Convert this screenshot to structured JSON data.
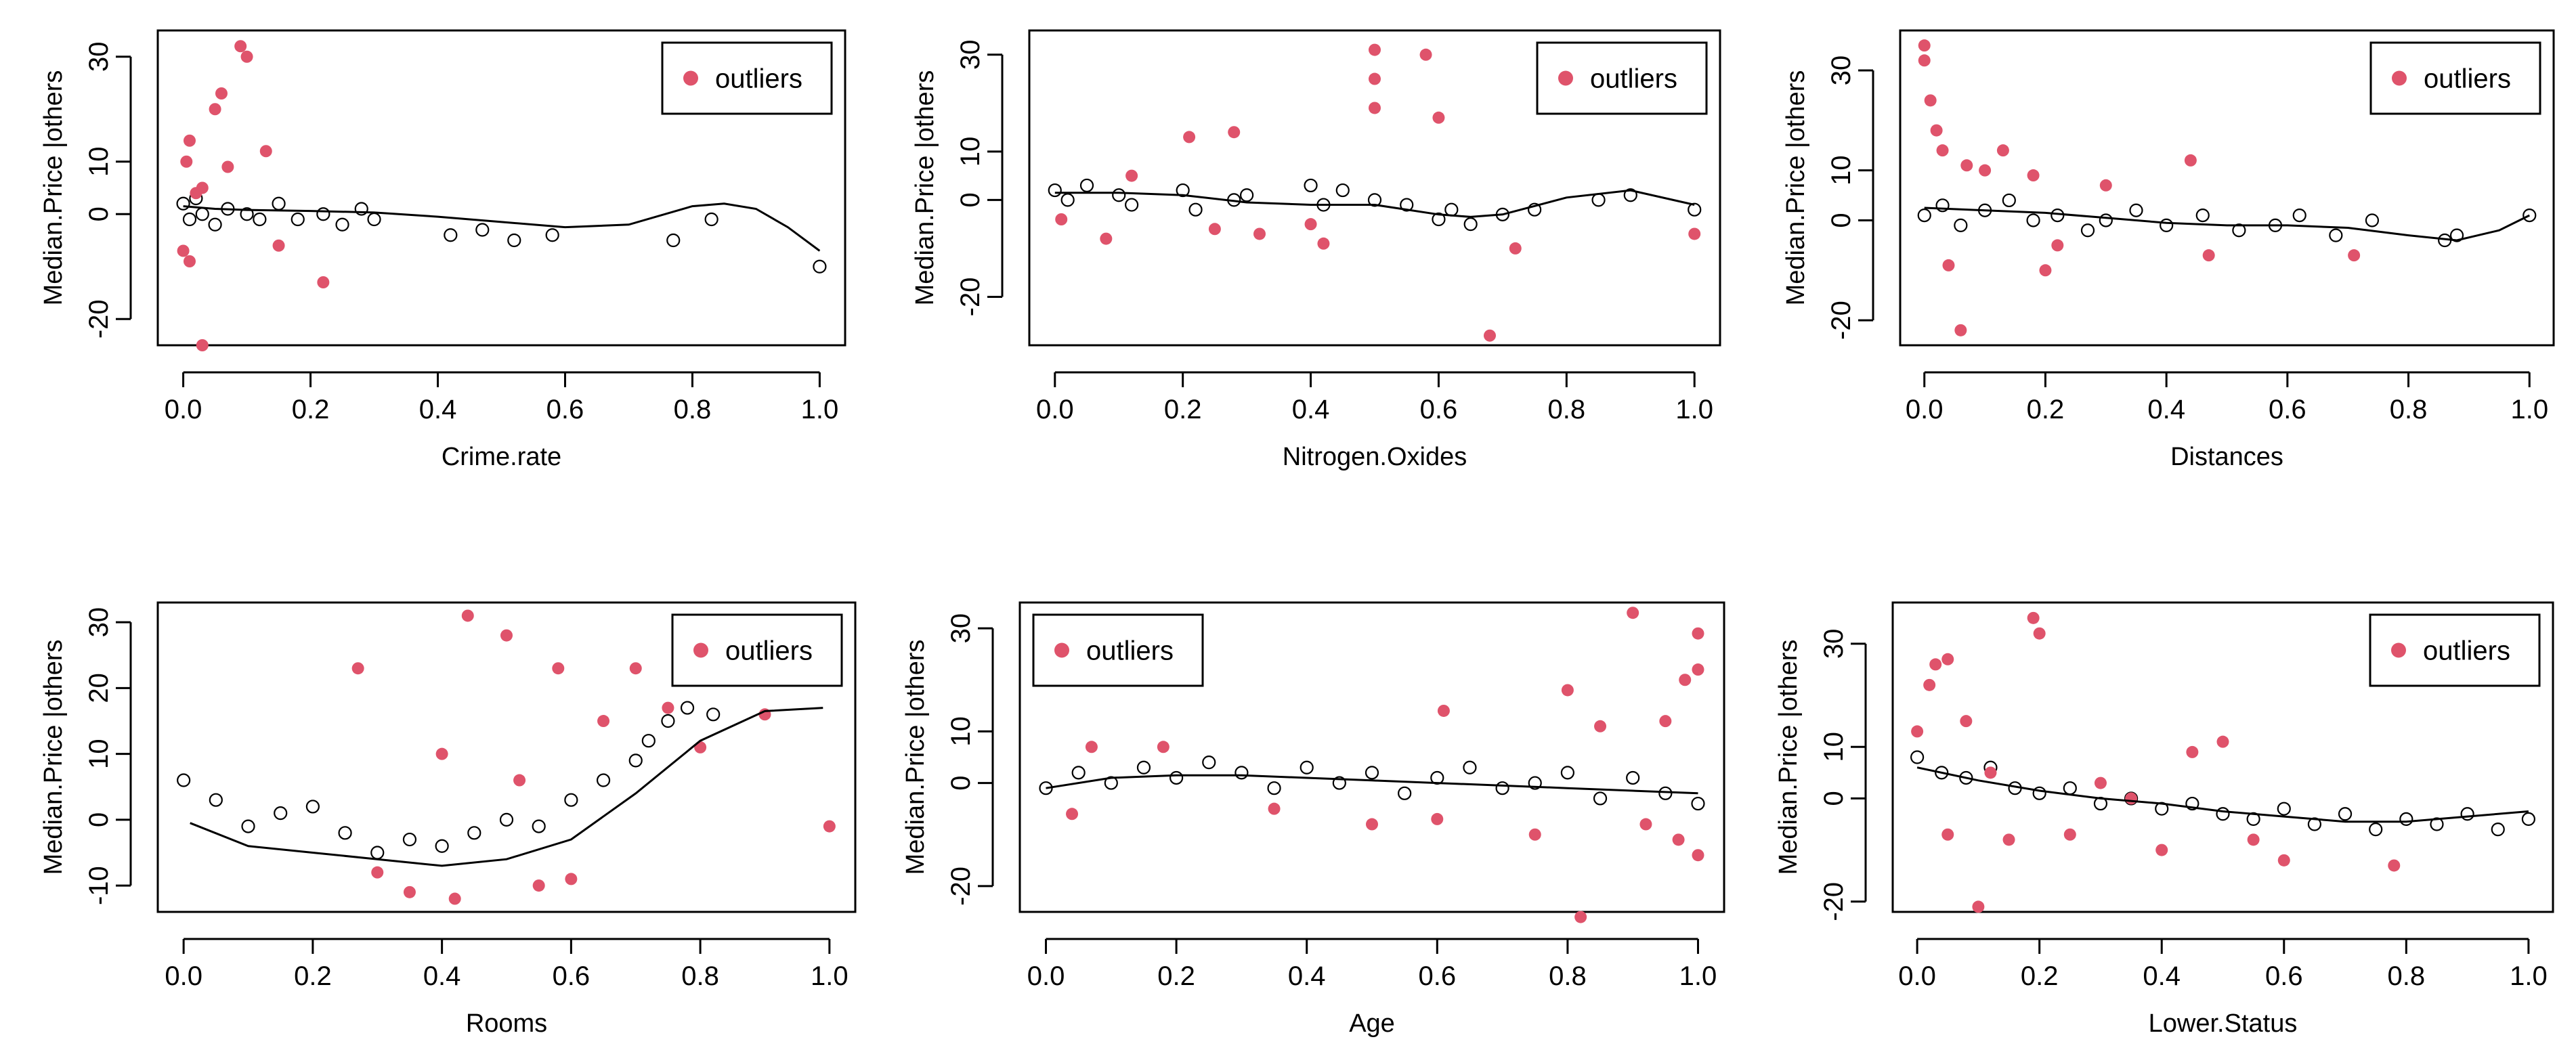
{
  "colors": {
    "outlier": "#DF536B",
    "ink": "#000000",
    "background": "#FFFFFF"
  },
  "chart_data": [
    {
      "type": "scatter",
      "xlabel": "Crime.rate",
      "ylabel": "Median.Price |others",
      "xlim": [
        -0.04,
        1.04
      ],
      "ylim": [
        -25,
        35
      ],
      "xticks": [
        0.0,
        0.2,
        0.4,
        0.6,
        0.8,
        1.0
      ],
      "xtick_labels": [
        "0.0",
        "0.2",
        "0.4",
        "0.6",
        "0.8",
        "1.0"
      ],
      "yticks": [
        -20,
        0,
        10,
        30
      ],
      "ytick_labels": [
        "-20",
        "0",
        "10",
        "30"
      ],
      "legend": {
        "label": "outliers",
        "position": "top-right"
      },
      "smooth": {
        "x": [
          0.0,
          0.05,
          0.1,
          0.2,
          0.3,
          0.4,
          0.5,
          0.6,
          0.7,
          0.8,
          0.85,
          0.9,
          0.95,
          1.0
        ],
        "y": [
          1.5,
          1.0,
          0.8,
          0.6,
          0.3,
          -0.5,
          -1.5,
          -2.5,
          -2.0,
          1.5,
          2.0,
          1.0,
          -2.5,
          -7.0
        ]
      },
      "normal_points": {
        "x": [
          0.0,
          0.01,
          0.02,
          0.03,
          0.05,
          0.07,
          0.1,
          0.12,
          0.15,
          0.18,
          0.22,
          0.25,
          0.28,
          0.3,
          0.42,
          0.47,
          0.52,
          0.58,
          0.77,
          0.83,
          1.0
        ],
        "y": [
          2,
          -1,
          3,
          0,
          -2,
          1,
          0,
          -1,
          2,
          -1,
          0,
          -2,
          1,
          -1,
          -4,
          -3,
          -5,
          -4,
          -5,
          -1,
          -10
        ]
      },
      "outlier_points": {
        "x": [
          0.005,
          0.01,
          0.01,
          0.02,
          0.03,
          0.05,
          0.06,
          0.07,
          0.09,
          0.1,
          0.13,
          0.15,
          0.22,
          0.0,
          0.03
        ],
        "y": [
          10,
          14,
          -9,
          4,
          -25,
          20,
          23,
          9,
          32,
          30,
          12,
          -6,
          -13,
          -7,
          5
        ]
      }
    },
    {
      "type": "scatter",
      "xlabel": "Nitrogen.Oxides",
      "ylabel": "Median.Price |others",
      "xlim": [
        -0.04,
        1.04
      ],
      "ylim": [
        -30,
        35
      ],
      "xticks": [
        0.0,
        0.2,
        0.4,
        0.6,
        0.8,
        1.0
      ],
      "xtick_labels": [
        "0.0",
        "0.2",
        "0.4",
        "0.6",
        "0.8",
        "1.0"
      ],
      "yticks": [
        -20,
        0,
        10,
        30
      ],
      "ytick_labels": [
        "-20",
        "0",
        "10",
        "30"
      ],
      "legend": {
        "label": "outliers",
        "position": "top-right"
      },
      "smooth": {
        "x": [
          0.0,
          0.1,
          0.2,
          0.3,
          0.4,
          0.5,
          0.6,
          0.65,
          0.7,
          0.8,
          0.9,
          1.0
        ],
        "y": [
          1.5,
          1.5,
          1.0,
          -0.5,
          -1.0,
          -1.0,
          -3.0,
          -3.5,
          -3.0,
          0.5,
          2.0,
          -1.0
        ]
      },
      "normal_points": {
        "x": [
          0.0,
          0.02,
          0.05,
          0.1,
          0.12,
          0.2,
          0.22,
          0.28,
          0.3,
          0.4,
          0.42,
          0.45,
          0.5,
          0.55,
          0.6,
          0.62,
          0.65,
          0.7,
          0.75,
          0.85,
          0.9,
          1.0
        ],
        "y": [
          2,
          0,
          3,
          1,
          -1,
          2,
          -2,
          0,
          1,
          3,
          -1,
          2,
          0,
          -1,
          -4,
          -2,
          -5,
          -3,
          -2,
          0,
          1,
          -2
        ]
      },
      "outlier_points": {
        "x": [
          0.01,
          0.08,
          0.12,
          0.21,
          0.25,
          0.28,
          0.32,
          0.4,
          0.42,
          0.5,
          0.5,
          0.5,
          0.58,
          0.6,
          0.68,
          0.72,
          1.0
        ],
        "y": [
          -4,
          -8,
          5,
          13,
          -6,
          14,
          -7,
          -5,
          -9,
          31,
          25,
          19,
          30,
          17,
          -28,
          -10,
          -7
        ]
      }
    },
    {
      "type": "scatter",
      "xlabel": "Distances",
      "ylabel": "Median.Price |others",
      "xlim": [
        -0.04,
        1.04
      ],
      "ylim": [
        -25,
        38
      ],
      "xticks": [
        0.0,
        0.2,
        0.4,
        0.6,
        0.8,
        1.0
      ],
      "xtick_labels": [
        "0.0",
        "0.2",
        "0.4",
        "0.6",
        "0.8",
        "1.0"
      ],
      "yticks": [
        -20,
        0,
        10,
        30
      ],
      "ytick_labels": [
        "-20",
        "0",
        "10",
        "30"
      ],
      "legend": {
        "label": "outliers",
        "position": "top-right"
      },
      "smooth": {
        "x": [
          0.0,
          0.1,
          0.2,
          0.3,
          0.4,
          0.5,
          0.6,
          0.7,
          0.8,
          0.88,
          0.95,
          1.0
        ],
        "y": [
          2.5,
          2.0,
          1.5,
          0.5,
          -0.5,
          -1.0,
          -1.0,
          -1.5,
          -3.0,
          -4.0,
          -2.0,
          1.0
        ]
      },
      "normal_points": {
        "x": [
          0.0,
          0.03,
          0.06,
          0.1,
          0.14,
          0.18,
          0.22,
          0.27,
          0.3,
          0.35,
          0.4,
          0.46,
          0.52,
          0.58,
          0.62,
          0.68,
          0.74,
          0.86,
          0.88,
          1.0
        ],
        "y": [
          1,
          3,
          -1,
          2,
          4,
          0,
          1,
          -2,
          0,
          2,
          -1,
          1,
          -2,
          -1,
          1,
          -3,
          0,
          -4,
          -3,
          1
        ]
      },
      "outlier_points": {
        "x": [
          0.0,
          0.0,
          0.01,
          0.02,
          0.03,
          0.04,
          0.06,
          0.07,
          0.1,
          0.13,
          0.18,
          0.2,
          0.22,
          0.3,
          0.44,
          0.47,
          0.71
        ],
        "y": [
          35,
          32,
          24,
          18,
          14,
          -9,
          -22,
          11,
          10,
          14,
          9,
          -10,
          -5,
          7,
          12,
          -7,
          -7
        ]
      }
    },
    {
      "type": "scatter",
      "xlabel": "Rooms",
      "ylabel": "Median.Price |others",
      "xlim": [
        -0.04,
        1.04
      ],
      "ylim": [
        -14,
        33
      ],
      "xticks": [
        0.0,
        0.2,
        0.4,
        0.6,
        0.8,
        1.0
      ],
      "xtick_labels": [
        "0.0",
        "0.2",
        "0.4",
        "0.6",
        "0.8",
        "1.0"
      ],
      "yticks": [
        -10,
        0,
        10,
        20,
        30
      ],
      "ytick_labels": [
        "-10",
        "0",
        "10",
        "20",
        "30"
      ],
      "legend": {
        "label": "outliers",
        "position": "top-right"
      },
      "smooth": {
        "x": [
          0.01,
          0.1,
          0.2,
          0.3,
          0.4,
          0.5,
          0.6,
          0.7,
          0.8,
          0.9,
          0.99
        ],
        "y": [
          -0.5,
          -4.0,
          -5.0,
          -6.0,
          -7.0,
          -6.0,
          -3.0,
          4.0,
          12.0,
          16.5,
          17.0
        ]
      },
      "normal_points": {
        "x": [
          0.0,
          0.05,
          0.1,
          0.15,
          0.2,
          0.25,
          0.3,
          0.35,
          0.4,
          0.45,
          0.5,
          0.55,
          0.6,
          0.65,
          0.7,
          0.72,
          0.75,
          0.78,
          0.82
        ],
        "y": [
          6,
          3,
          -1,
          1,
          2,
          -2,
          -5,
          -3,
          -4,
          -2,
          0,
          -1,
          3,
          6,
          9,
          12,
          15,
          17,
          16
        ]
      },
      "outlier_points": {
        "x": [
          0.27,
          0.35,
          0.4,
          0.44,
          0.5,
          0.52,
          0.58,
          0.6,
          0.65,
          0.7,
          0.75,
          0.8,
          0.9,
          1.0,
          0.42,
          0.3,
          0.55
        ],
        "y": [
          23,
          -11,
          10,
          31,
          28,
          6,
          23,
          -9,
          15,
          23,
          17,
          11,
          16,
          -1,
          -12,
          -8,
          -10
        ]
      }
    },
    {
      "type": "scatter",
      "xlabel": "Age",
      "ylabel": "Median.Price |others",
      "xlim": [
        -0.04,
        1.04
      ],
      "ylim": [
        -25,
        35
      ],
      "xticks": [
        0.0,
        0.2,
        0.4,
        0.6,
        0.8,
        1.0
      ],
      "xtick_labels": [
        "0.0",
        "0.2",
        "0.4",
        "0.6",
        "0.8",
        "1.0"
      ],
      "yticks": [
        -20,
        0,
        10,
        30
      ],
      "ytick_labels": [
        "-20",
        "0",
        "10",
        "30"
      ],
      "legend": {
        "label": "outliers",
        "position": "top-left"
      },
      "smooth": {
        "x": [
          0.0,
          0.1,
          0.2,
          0.3,
          0.4,
          0.5,
          0.6,
          0.7,
          0.8,
          0.9,
          1.0
        ],
        "y": [
          -1.0,
          1.0,
          1.5,
          1.5,
          1.0,
          0.5,
          0.0,
          -0.5,
          -1.0,
          -1.5,
          -2.0
        ]
      },
      "normal_points": {
        "x": [
          0.0,
          0.05,
          0.1,
          0.15,
          0.2,
          0.25,
          0.3,
          0.35,
          0.4,
          0.45,
          0.5,
          0.55,
          0.6,
          0.65,
          0.7,
          0.75,
          0.8,
          0.85,
          0.9,
          0.95,
          1.0
        ],
        "y": [
          -1,
          2,
          0,
          3,
          1,
          4,
          2,
          -1,
          3,
          0,
          2,
          -2,
          1,
          3,
          -1,
          0,
          2,
          -3,
          1,
          -2,
          -4
        ]
      },
      "outlier_points": {
        "x": [
          0.04,
          0.07,
          0.18,
          0.35,
          0.5,
          0.6,
          0.61,
          0.75,
          0.8,
          0.82,
          0.85,
          0.9,
          0.92,
          0.95,
          0.98,
          1.0,
          1.0,
          1.0,
          0.97
        ],
        "y": [
          -6,
          7,
          7,
          -5,
          -8,
          -7,
          14,
          -10,
          18,
          -26,
          11,
          33,
          -8,
          12,
          20,
          29,
          22,
          -14,
          -11
        ]
      }
    },
    {
      "type": "scatter",
      "xlabel": "Lower.Status",
      "ylabel": "Median.Price |others",
      "xlim": [
        -0.04,
        1.04
      ],
      "ylim": [
        -22,
        38
      ],
      "xticks": [
        0.0,
        0.2,
        0.4,
        0.6,
        0.8,
        1.0
      ],
      "xtick_labels": [
        "0.0",
        "0.2",
        "0.4",
        "0.6",
        "0.8",
        "1.0"
      ],
      "yticks": [
        -20,
        0,
        10,
        30
      ],
      "ytick_labels": [
        "-20",
        "0",
        "10",
        "30"
      ],
      "legend": {
        "label": "outliers",
        "position": "top-right"
      },
      "smooth": {
        "x": [
          0.0,
          0.1,
          0.2,
          0.3,
          0.4,
          0.5,
          0.6,
          0.7,
          0.8,
          0.9,
          1.0
        ],
        "y": [
          6.0,
          3.5,
          1.5,
          0.0,
          -1.0,
          -2.5,
          -3.5,
          -4.5,
          -4.5,
          -3.5,
          -2.5
        ]
      },
      "normal_points": {
        "x": [
          0.0,
          0.04,
          0.08,
          0.12,
          0.16,
          0.2,
          0.25,
          0.3,
          0.35,
          0.4,
          0.45,
          0.5,
          0.55,
          0.6,
          0.65,
          0.7,
          0.75,
          0.8,
          0.85,
          0.9,
          0.95,
          1.0
        ],
        "y": [
          8,
          5,
          4,
          6,
          2,
          1,
          2,
          -1,
          0,
          -2,
          -1,
          -3,
          -4,
          -2,
          -5,
          -3,
          -6,
          -4,
          -5,
          -3,
          -6,
          -4
        ]
      },
      "outlier_points": {
        "x": [
          0.0,
          0.02,
          0.03,
          0.05,
          0.08,
          0.1,
          0.12,
          0.15,
          0.19,
          0.2,
          0.25,
          0.3,
          0.35,
          0.4,
          0.45,
          0.5,
          0.55,
          0.6,
          0.78,
          0.05
        ],
        "y": [
          13,
          22,
          26,
          27,
          15,
          -21,
          5,
          -8,
          35,
          32,
          -7,
          3,
          0,
          -10,
          9,
          11,
          -8,
          -12,
          -13,
          -7
        ]
      }
    }
  ]
}
